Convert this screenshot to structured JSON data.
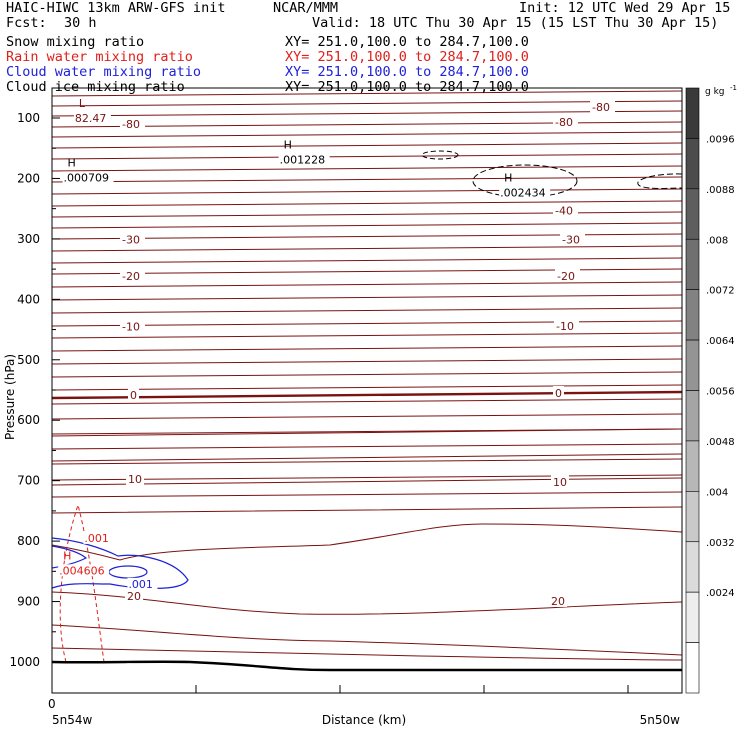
{
  "header": {
    "model": "HAIC-HIWC 13km ARW-GFS init",
    "org": "NCAR/MMM",
    "init": "Init: 12 UTC Wed 29 Apr 15",
    "fcst_label": "Fcst:",
    "fcst_value": "30 h",
    "valid": "Valid: 18 UTC Thu 30 Apr 15 (15 LST Thu 30 Apr 15)"
  },
  "fields": [
    {
      "name": "Snow mixing ratio",
      "xy": "XY= 251.0,100.0 to 284.7,100.0",
      "color": "#000000"
    },
    {
      "name": "Rain water mixing ratio",
      "xy": "XY= 251.0,100.0 to 284.7,100.0",
      "color": "#e0201c"
    },
    {
      "name": "Cloud water mixing ratio",
      "xy": "XY= 251.0,100.0 to 284.7,100.0",
      "color": "#1f22d8"
    },
    {
      "name": "Cloud ice mixing ratio",
      "xy": "XY= 251.0,100.0 to 284.7,100.0",
      "color": "#000000"
    }
  ],
  "chart_data": {
    "type": "contour",
    "ylabel": "Pressure (hPa)",
    "xlabel": "Distance (km)",
    "x_origin_label": "0",
    "x_start_label": "5n54w",
    "x_end_label": "5n50w",
    "y_ticks": [
      100,
      200,
      300,
      400,
      500,
      600,
      700,
      800,
      900,
      1000
    ],
    "y_range": [
      50,
      1050
    ],
    "colorbar": {
      "unit": "g kg",
      "unit_exp": "-1",
      "levels": [
        ".0096",
        ".0088",
        ".008",
        ".0072",
        ".0064",
        ".0056",
        ".0048",
        ".004",
        ".0032",
        ".0024"
      ]
    },
    "temperature_labels": {
      "color": "#7a1212",
      "left": [
        {
          "text": "-80",
          "p": 110
        },
        {
          "text": "-30",
          "p": 301
        },
        {
          "text": "-20",
          "p": 361
        },
        {
          "text": "-10",
          "p": 445
        },
        {
          "text": "0",
          "p": 558
        },
        {
          "text": "10",
          "p": 697
        },
        {
          "text": "20",
          "p": 891
        }
      ],
      "right": [
        {
          "text": "-80",
          "p": 82
        },
        {
          "text": "-80",
          "p": 107
        },
        {
          "text": "-40",
          "p": 253
        },
        {
          "text": "-30",
          "p": 301
        },
        {
          "text": "-20",
          "p": 361
        },
        {
          "text": "-10",
          "p": 444
        },
        {
          "text": "0",
          "p": 555
        },
        {
          "text": "10",
          "p": 702
        },
        {
          "text": "20",
          "p": 899
        }
      ]
    },
    "extrema": [
      {
        "marker": "L",
        "value": "82.47",
        "color": "#7a1212",
        "xf": 0.03,
        "p": 92
      },
      {
        "marker": "H",
        "value": ".001228",
        "color": "#000000",
        "xf": 0.355,
        "p": 160
      },
      {
        "marker": "H",
        "value": ".000709",
        "color": "#000000",
        "xf": 0.012,
        "p": 190
      },
      {
        "marker": "H",
        "value": ".002434",
        "color": "#000000",
        "xf": 0.705,
        "p": 215
      },
      {
        "marker": "H",
        "value": ".004606",
        "color": "#e0201c",
        "xf": 0.005,
        "p": 840
      }
    ],
    "contour_labels": [
      {
        "text": ".001",
        "color": "#e0201c",
        "xf": 0.045,
        "p": 798
      },
      {
        "text": ".001",
        "color": "#1f22d8",
        "xf": 0.115,
        "p": 874
      }
    ]
  }
}
